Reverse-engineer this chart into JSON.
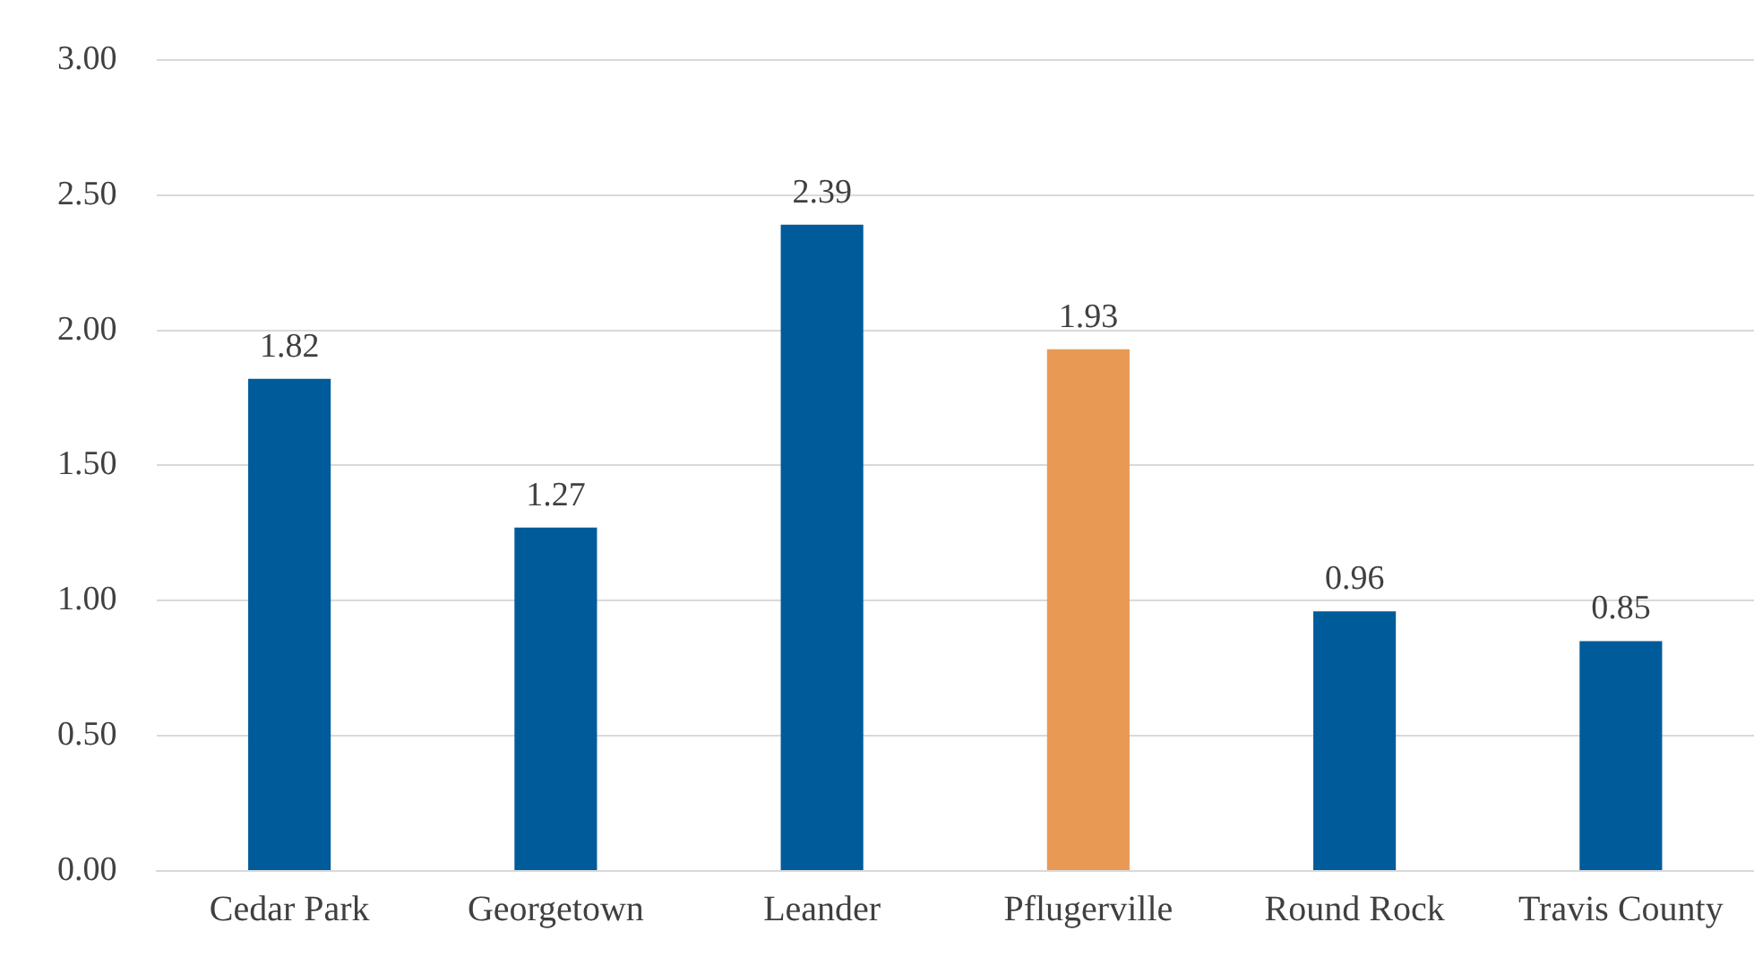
{
  "chart_data": {
    "type": "bar",
    "categories": [
      "Cedar Park",
      "Georgetown",
      "Leander",
      "Pflugerville",
      "Round Rock",
      "Travis County"
    ],
    "values": [
      1.82,
      1.27,
      2.39,
      1.93,
      0.96,
      0.85
    ],
    "colors": [
      "#005b9a",
      "#005b9a",
      "#005b9a",
      "#e89a55",
      "#005b9a",
      "#005b9a"
    ],
    "ylim": [
      0,
      3
    ],
    "yticks": [
      {
        "value": 0,
        "label": "0.00"
      },
      {
        "value": 0.5,
        "label": "0.50"
      },
      {
        "value": 1,
        "label": "1.00"
      },
      {
        "value": 1.5,
        "label": "1.50"
      },
      {
        "value": 2,
        "label": "2.00"
      },
      {
        "value": 2.5,
        "label": "2.50"
      },
      {
        "value": 3,
        "label": "3.00"
      }
    ],
    "grid": "y",
    "legend": false,
    "data_labels": true
  }
}
